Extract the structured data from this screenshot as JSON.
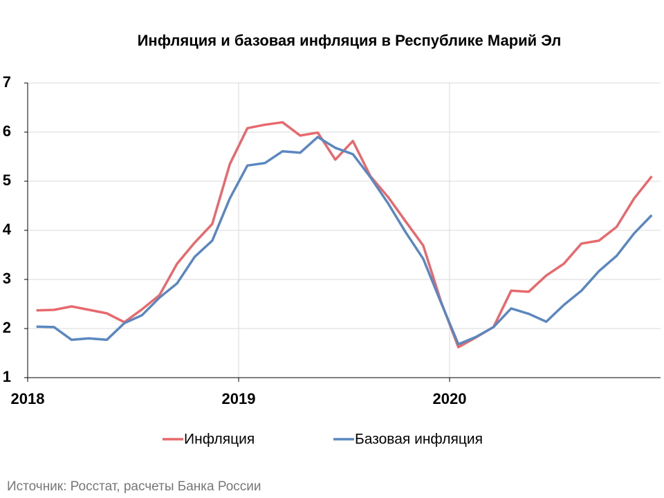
{
  "chart_data": {
    "type": "line",
    "title": "Инфляция и базовая инфляция в Республике Марий Эл",
    "source": "Источник: Росстат, расчеты Банка России",
    "categories": [
      "2018",
      null,
      null,
      null,
      null,
      null,
      null,
      null,
      null,
      null,
      null,
      null,
      "2019",
      null,
      null,
      null,
      null,
      null,
      null,
      null,
      null,
      null,
      null,
      null,
      "2020",
      null,
      null,
      null,
      null,
      null,
      null,
      null,
      null,
      null,
      null,
      null
    ],
    "series": [
      {
        "name": "Инфляция",
        "color": "#e8696d",
        "values": [
          2.37,
          2.38,
          2.45,
          2.38,
          2.31,
          2.13,
          2.39,
          2.68,
          3.32,
          3.75,
          4.13,
          5.35,
          6.08,
          6.15,
          6.2,
          5.93,
          5.99,
          5.44,
          5.82,
          5.1,
          4.68,
          4.18,
          3.69,
          2.56,
          1.62,
          1.82,
          2.03,
          2.77,
          2.75,
          3.08,
          3.32,
          3.73,
          3.79,
          4.07,
          4.65,
          5.1
        ]
      },
      {
        "name": "Базовая инфляция",
        "color": "#5b87c0",
        "values": [
          2.04,
          2.03,
          1.77,
          1.8,
          1.77,
          2.11,
          2.27,
          2.63,
          2.92,
          3.46,
          3.79,
          4.65,
          5.32,
          5.37,
          5.61,
          5.58,
          5.9,
          5.68,
          5.55,
          5.08,
          4.55,
          3.96,
          3.42,
          2.54,
          1.68,
          1.83,
          2.03,
          2.41,
          2.3,
          2.14,
          2.48,
          2.77,
          3.17,
          3.48,
          3.94,
          4.31
        ]
      }
    ],
    "ylim": [
      1,
      7
    ],
    "yticks": [
      1,
      2,
      3,
      4,
      5,
      6,
      7
    ],
    "grid": true,
    "legend": "bottom"
  }
}
